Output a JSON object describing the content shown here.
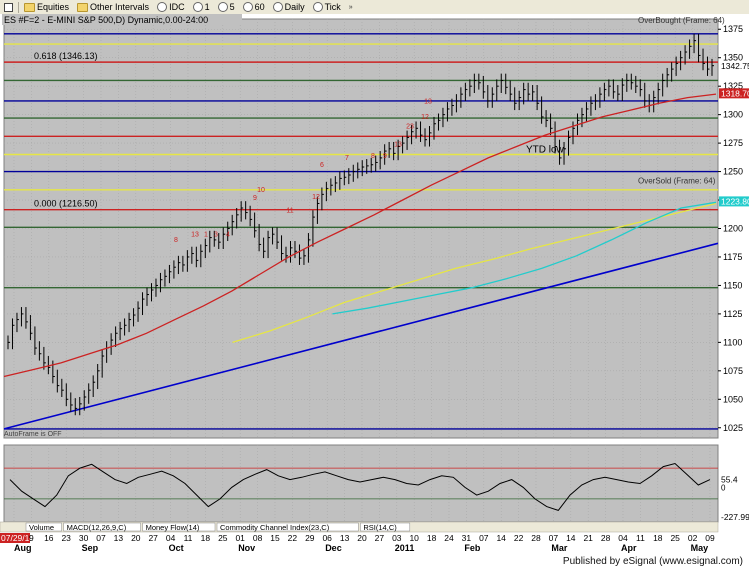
{
  "toolbar": {
    "items": [
      "Equities",
      "Other Intervals",
      "IDC",
      "1",
      "5",
      "60",
      "Daily",
      "Tick"
    ]
  },
  "header": {
    "title": "ES #F=2 - E-MINI S&P 500,D) Dynamic,0.00-24:00",
    "overbought_label": "OverBought (Frame: 64)",
    "oversold_label": "OverSold (Frame: 64)"
  },
  "footer": {
    "text": "Published by eSignal (www.esignal.com)"
  },
  "chart_data": {
    "type": "line",
    "title": "ES #F=2 - E-MINI S&P 500,D) Dynamic,0.00-24:00",
    "y_ticks": [
      1375,
      1350,
      1325,
      1300,
      1275,
      1250,
      1225,
      1200,
      1175,
      1150,
      1125,
      1100,
      1075,
      1050,
      1025
    ],
    "ylim": [
      1016,
      1384
    ],
    "x_tick_labels": [
      "07/29/10",
      "9",
      "16",
      "23",
      "30",
      "07",
      "13",
      "20",
      "27",
      "04",
      "11",
      "18",
      "25",
      "01",
      "08",
      "15",
      "22",
      "29",
      "06",
      "13",
      "20",
      "27",
      "03",
      "10",
      "18",
      "24",
      "31",
      "07",
      "14",
      "22",
      "28",
      "07",
      "14",
      "21",
      "28",
      "04",
      "11",
      "18",
      "25",
      "02",
      "09"
    ],
    "month_labels": [
      "Aug",
      "Sep",
      "Oct",
      "Nov",
      "Dec",
      "2011",
      "Feb",
      "Mar",
      "Apr",
      "May"
    ],
    "annotations": {
      "fib_0618": "0.618 (1346.13)",
      "fib_0000": "0.000 (1216.50)",
      "ytd_low": "YTD low",
      "autoframe": "AutoFrame is OFF",
      "sequence_labels_upper": [
        "13",
        "1",
        "3",
        "4",
        "8",
        "9",
        "10",
        "11",
        "12",
        "13",
        "23",
        "6",
        "7",
        "8",
        "9",
        "12",
        "13"
      ]
    },
    "price_markers": {
      "last_price": "1342.75",
      "red_marker": "1318.70",
      "cyan_marker": "1223.80"
    },
    "price_series": {
      "name": "ES #F=2",
      "start_date": "07/29/10",
      "closes": [
        1100,
        1115,
        1120,
        1125,
        1118,
        1108,
        1095,
        1090,
        1082,
        1078,
        1070,
        1062,
        1058,
        1050,
        1045,
        1042,
        1046,
        1052,
        1058,
        1065,
        1075,
        1088,
        1095,
        1102,
        1108,
        1112,
        1115,
        1120,
        1124,
        1130,
        1138,
        1142,
        1146,
        1150,
        1155,
        1158,
        1162,
        1166,
        1170,
        1168,
        1175,
        1178,
        1172,
        1180,
        1185,
        1192,
        1190,
        1188,
        1195,
        1200,
        1206,
        1212,
        1218,
        1214,
        1208,
        1198,
        1186,
        1180,
        1192,
        1195,
        1188,
        1178,
        1176,
        1183,
        1180,
        1174,
        1176,
        1190,
        1210,
        1222,
        1230,
        1235,
        1238,
        1240,
        1244,
        1245,
        1247,
        1250,
        1252,
        1254,
        1255,
        1256,
        1258,
        1262,
        1268,
        1270,
        1266,
        1272,
        1275,
        1280,
        1285,
        1288,
        1282,
        1278,
        1284,
        1292,
        1295,
        1300,
        1305,
        1308,
        1312,
        1318,
        1322,
        1325,
        1330,
        1328,
        1320,
        1312,
        1318,
        1325,
        1330,
        1324,
        1318,
        1310,
        1315,
        1322,
        1318,
        1320,
        1310,
        1298,
        1295,
        1288,
        1272,
        1262,
        1270,
        1280,
        1288,
        1295,
        1300,
        1305,
        1310,
        1312,
        1318,
        1322,
        1325,
        1320,
        1318,
        1326,
        1330,
        1328,
        1325,
        1322,
        1312,
        1308,
        1315,
        1322,
        1330,
        1335,
        1340,
        1345,
        1350,
        1355,
        1360,
        1365,
        1352,
        1345,
        1340,
        1343
      ]
    },
    "moving_averages": [
      {
        "color": "#cc2222",
        "values": [
          1070,
          1076,
          1082,
          1090,
          1098,
          1108,
          1120,
          1132,
          1145,
          1160,
          1175,
          1188,
          1200,
          1212,
          1225,
          1238,
          1250,
          1262,
          1272,
          1282,
          1290,
          1298,
          1304,
          1310,
          1315,
          1318
        ]
      },
      {
        "color": "#e6e645",
        "values": [
          1100,
          1110,
          1122,
          1135,
          1145,
          1155,
          1165,
          1173,
          1182,
          1190,
          1198,
          1206,
          1214,
          1222
        ]
      },
      {
        "color": "#22cccc",
        "values": [
          1125,
          1130,
          1136,
          1142,
          1148,
          1156,
          1165,
          1176,
          1190,
          1205,
          1218,
          1223
        ]
      }
    ],
    "trend_line": {
      "color": "#0000cc",
      "from": [
        "07/29/10",
        1024
      ],
      "to": [
        "05/09/11",
        1187
      ]
    },
    "horizontal_levels": [
      {
        "value": 1371,
        "color": "#000099",
        "label": ""
      },
      {
        "value": 1362,
        "color": "#e6e645",
        "label": ""
      },
      {
        "value": 1346.13,
        "color": "#cc2222",
        "label": "0.618 (1346.13)"
      },
      {
        "value": 1330,
        "color": "#336633",
        "label": ""
      },
      {
        "value": 1312,
        "color": "#000099",
        "label": ""
      },
      {
        "value": 1297,
        "color": "#336633",
        "label": ""
      },
      {
        "value": 1281,
        "color": "#cc2222",
        "label": ""
      },
      {
        "value": 1265,
        "color": "#e6e645",
        "label": ""
      },
      {
        "value": 1250,
        "color": "#000099",
        "label": ""
      },
      {
        "value": 1234,
        "color": "#e6e645",
        "label": ""
      },
      {
        "value": 1216.5,
        "color": "#cc2222",
        "label": "0.000 (1216.50)"
      },
      {
        "value": 1201,
        "color": "#336633",
        "label": ""
      },
      {
        "value": 1148,
        "color": "#336633",
        "label": ""
      },
      {
        "value": 1024,
        "color": "#000099",
        "label": ""
      }
    ],
    "oscillator": {
      "name": "RSI(14,C)",
      "current_value": "55.4",
      "lower_value": "-227.99",
      "zero_label": "0",
      "values": [
        55,
        40,
        30,
        20,
        35,
        60,
        70,
        75,
        65,
        55,
        50,
        58,
        62,
        66,
        60,
        50,
        35,
        20,
        30,
        45,
        55,
        62,
        68,
        60,
        55,
        58,
        62,
        65,
        60,
        55,
        52,
        55,
        58,
        55,
        50,
        48,
        55,
        60,
        58,
        45,
        35,
        40,
        50,
        55,
        45,
        30,
        20,
        15,
        35,
        48,
        55,
        58,
        55,
        52,
        50,
        60,
        72,
        76,
        62,
        48,
        55
      ]
    },
    "indicator_tabs": [
      "Volume",
      "MACD(12,26,9,C)",
      "Money Flow(14)",
      "Commodity Channel Index(23,C)",
      "RSI(14,C)"
    ]
  }
}
